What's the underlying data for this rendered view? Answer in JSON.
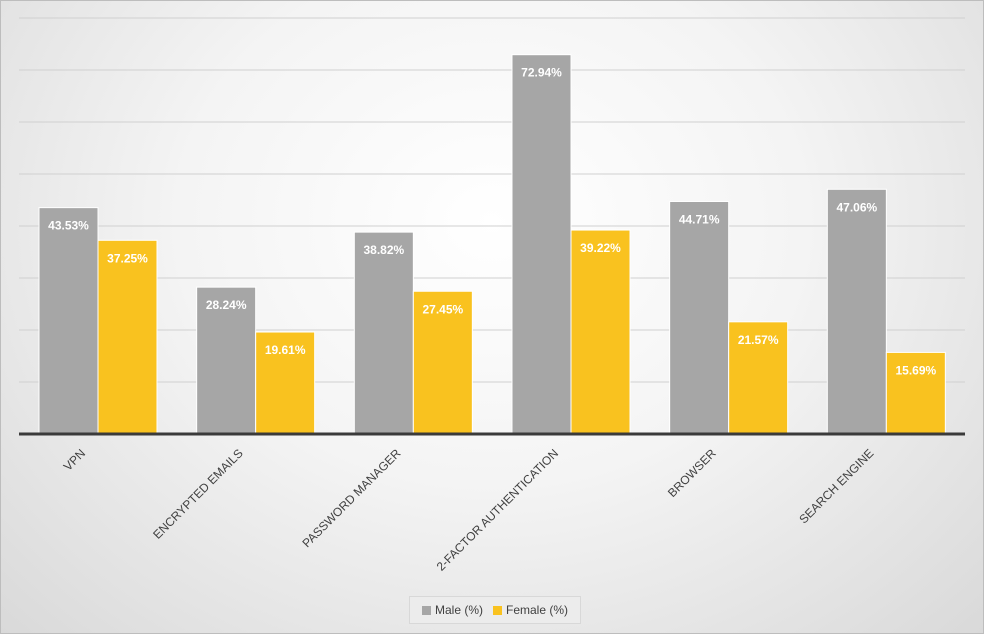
{
  "chart_data": {
    "type": "bar",
    "categories": [
      "VPN",
      "ENCRYPTED EMAILS",
      "PASSWORD MANAGER",
      "2-FACTOR AUTHENTICATION",
      "BROWSER",
      "SEARCH ENGINE"
    ],
    "series": [
      {
        "name": "Male (%)",
        "color": "#a6a6a6",
        "values": [
          43.53,
          28.24,
          38.82,
          72.94,
          44.71,
          47.06
        ],
        "labels": [
          "43.53%",
          "28.24%",
          "38.82%",
          "72.94%",
          "44.71%",
          "47.06%"
        ]
      },
      {
        "name": "Female (%)",
        "color": "#f9c21f",
        "values": [
          37.25,
          19.61,
          27.45,
          39.22,
          21.57,
          15.69
        ],
        "labels": [
          "37.25%",
          "19.61%",
          "27.45%",
          "39.22%",
          "21.57%",
          "15.69%"
        ]
      }
    ],
    "ylim": [
      0,
      80
    ],
    "grid": true,
    "legend": "bottom"
  }
}
